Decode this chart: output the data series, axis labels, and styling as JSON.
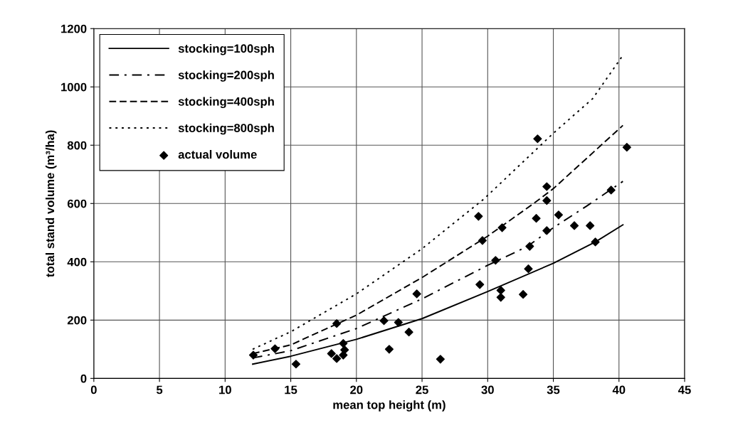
{
  "chart_data": {
    "type": "line",
    "xlabel": "mean top height (m)",
    "ylabel": "total stand volume (m³/ha)",
    "xlim": [
      0,
      45
    ],
    "ylim": [
      0,
      1200
    ],
    "xticks": [
      0,
      5,
      10,
      15,
      20,
      25,
      30,
      35,
      40,
      45
    ],
    "yticks": [
      0,
      200,
      400,
      600,
      800,
      1000,
      1200
    ],
    "grid": true,
    "legend": "top left",
    "series": [
      {
        "name": "stocking=100sph",
        "type": "line",
        "color": "#000000",
        "line_style": "solid",
        "marker": "none",
        "x": [
          12.1,
          15,
          20,
          25,
          30,
          35,
          38.2,
          40.3
        ],
        "values": [
          49,
          76,
          134,
          205,
          298,
          395,
          468,
          527
        ]
      },
      {
        "name": "stocking=200sph",
        "type": "line",
        "color": "#000000",
        "line_style": "dashdot",
        "marker": "none",
        "x": [
          12.1,
          15,
          20,
          25,
          30,
          33,
          35,
          37.5,
          40.3
        ],
        "values": [
          70,
          95,
          171,
          273,
          388,
          452,
          517,
          590,
          676
        ]
      },
      {
        "name": "stocking=400sph",
        "type": "line",
        "color": "#000000",
        "line_style": "dashed",
        "marker": "none",
        "x": [
          12.1,
          15,
          20,
          25,
          30,
          33.5,
          35,
          40.3
        ],
        "values": [
          85,
          115,
          217,
          346,
          488,
          600,
          651,
          868
        ]
      },
      {
        "name": "stocking=800sph",
        "type": "line",
        "color": "#000000",
        "line_style": "dotted",
        "marker": "none",
        "x": [
          12.1,
          15,
          20,
          25,
          29.7,
          35,
          38,
          40.2
        ],
        "values": [
          100,
          160,
          290,
          445,
          615,
          841,
          960,
          1102
        ]
      },
      {
        "name": "actual volume",
        "type": "scatter",
        "color": "#000000",
        "marker": "diamond",
        "x": [
          12.15,
          13.8,
          15.4,
          18.1,
          18.5,
          18.5,
          19.0,
          19.1,
          19.0,
          22.1,
          22.5,
          23.2,
          24.0,
          24.6,
          26.4,
          33.8,
          29.3,
          29.6,
          31.1,
          33.7,
          34.5,
          34.5,
          35.4,
          36.6,
          37.8,
          34.5,
          33.2,
          30.6,
          29.4,
          33.1,
          31.0,
          31.0,
          32.7,
          38.2,
          40.6,
          39.4
        ],
        "values": [
          80,
          102,
          49,
          85,
          68,
          188,
          120,
          98,
          80,
          198,
          100,
          192,
          159,
          290,
          66,
          822,
          556,
          473,
          517,
          549,
          658,
          610,
          561,
          524,
          524,
          507,
          453,
          405,
          322,
          376,
          302,
          278,
          288,
          468,
          793,
          646
        ]
      }
    ]
  }
}
